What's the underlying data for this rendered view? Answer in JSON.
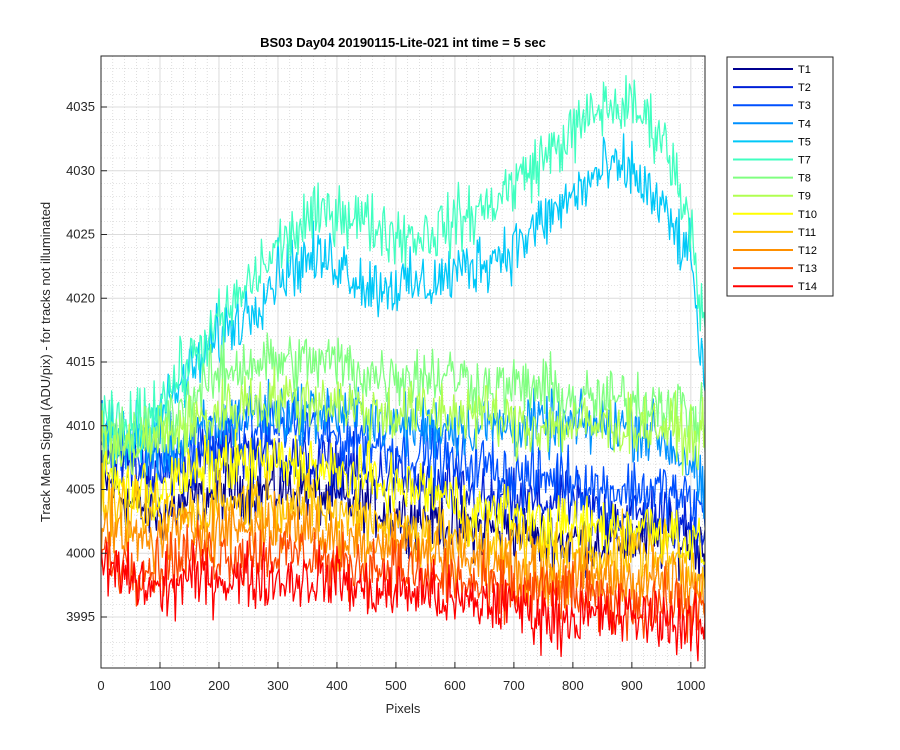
{
  "chart_data": {
    "type": "line",
    "title": "BS03 Day04 20190115-Lite-021 int time = 5 sec",
    "xlabel": "Pixels",
    "ylabel": "Track Mean Signal (ADU/pix) - for tracks not illuminated",
    "xlim": [
      0,
      1024
    ],
    "ylim": [
      3991,
      4039
    ],
    "xticks": [
      0,
      100,
      200,
      300,
      400,
      500,
      600,
      700,
      800,
      900,
      1000
    ],
    "yticks": [
      3995,
      4000,
      4005,
      4010,
      4015,
      4020,
      4025,
      4030,
      4035
    ],
    "grid": true,
    "minor_grid": true,
    "legend_position": "outside-top-right",
    "x": [
      0,
      50,
      100,
      150,
      200,
      250,
      300,
      350,
      400,
      450,
      500,
      550,
      600,
      650,
      700,
      750,
      800,
      850,
      900,
      950,
      1000,
      1024
    ],
    "series": [
      {
        "name": "T1",
        "color": "#00008f",
        "values": [
          4006,
          4004,
          4003,
          4004,
          4005,
          4005,
          4005,
          4005,
          4004,
          4004,
          4003,
          4003,
          4002,
          4002,
          4002,
          4001,
          4001,
          4001,
          4001,
          4001,
          4001,
          4000
        ]
      },
      {
        "name": "T2",
        "color": "#0020d8",
        "values": [
          4008,
          4007,
          4006,
          4007,
          4008,
          4008,
          4008,
          4007,
          4007,
          4006,
          4006,
          4005,
          4005,
          4004,
          4004,
          4004,
          4004,
          4003,
          4003,
          4003,
          4002,
          4002
        ]
      },
      {
        "name": "T3",
        "color": "#0050ff",
        "values": [
          4009,
          4008,
          4007,
          4008,
          4009,
          4010,
          4010,
          4010,
          4009,
          4009,
          4008,
          4008,
          4007,
          4007,
          4006,
          4006,
          4006,
          4005,
          4005,
          4005,
          4004,
          4003
        ]
      },
      {
        "name": "T4",
        "color": "#0090ff",
        "values": [
          4010,
          4009,
          4008,
          4009,
          4010,
          4011,
          4011,
          4011,
          4011,
          4011,
          4010,
          4010,
          4010,
          4010,
          4010,
          4010,
          4010,
          4010,
          4010,
          4009,
          4007,
          4004
        ]
      },
      {
        "name": "T5",
        "color": "#00c8f8",
        "values": [
          4009,
          4009,
          4011,
          4014,
          4017,
          4019,
          4022,
          4023,
          4023,
          4021,
          4021,
          4021,
          4022,
          4023,
          4024,
          4026,
          4028,
          4030,
          4030,
          4027,
          4023,
          4013
        ]
      },
      {
        "name": "T7",
        "color": "#40ffc0",
        "values": [
          4010,
          4010,
          4012,
          4015,
          4018,
          4021,
          4024,
          4026,
          4027,
          4026,
          4025,
          4025,
          4026,
          4027,
          4029,
          4031,
          4033,
          4035,
          4035,
          4033,
          4026,
          4017
        ]
      },
      {
        "name": "T8",
        "color": "#80ff80",
        "values": [
          4009,
          4009,
          4010,
          4012,
          4014,
          4015,
          4015,
          4015,
          4015,
          4014,
          4014,
          4014,
          4014,
          4013,
          4013,
          4013,
          4012,
          4012,
          4012,
          4012,
          4011,
          4010
        ]
      },
      {
        "name": "T9",
        "color": "#b0ff50",
        "values": [
          4008,
          4008,
          4009,
          4010,
          4011,
          4012,
          4012,
          4012,
          4012,
          4011,
          4011,
          4011,
          4011,
          4011,
          4010,
          4010,
          4010,
          4010,
          4010,
          4010,
          4009,
          4009
        ]
      },
      {
        "name": "T10",
        "color": "#ffff00",
        "values": [
          4006,
          4005,
          4005,
          4006,
          4007,
          4007,
          4007,
          4007,
          4006,
          4006,
          4005,
          4005,
          4004,
          4003,
          4003,
          4002,
          4002,
          4002,
          4002,
          4002,
          4001,
          4000
        ]
      },
      {
        "name": "T11",
        "color": "#ffc400",
        "values": [
          4004,
          4003,
          4003,
          4003,
          4004,
          4004,
          4004,
          4004,
          4003,
          4003,
          4002,
          4002,
          4001,
          4001,
          4001,
          4000,
          4000,
          4000,
          4000,
          4000,
          3999,
          3998
        ]
      },
      {
        "name": "T12",
        "color": "#ff9000",
        "values": [
          4002,
          4001,
          4001,
          4002,
          4002,
          4002,
          4002,
          4002,
          4001,
          4001,
          4001,
          4000,
          4000,
          3999,
          3999,
          3998,
          3998,
          3998,
          3998,
          3998,
          3997,
          3997
        ]
      },
      {
        "name": "T13",
        "color": "#ff4800",
        "values": [
          4000,
          3999,
          3999,
          4000,
          4000,
          4000,
          4000,
          4000,
          3999,
          3999,
          3999,
          3998,
          3998,
          3997,
          3997,
          3997,
          3997,
          3996,
          3996,
          3996,
          3996,
          3995
        ]
      },
      {
        "name": "T14",
        "color": "#ff0000",
        "values": [
          3999,
          3998,
          3997,
          3998,
          3998,
          3998,
          3998,
          3998,
          3998,
          3997,
          3997,
          3997,
          3996,
          3996,
          3996,
          3995,
          3995,
          3995,
          3995,
          3995,
          3994,
          3994
        ]
      }
    ]
  }
}
